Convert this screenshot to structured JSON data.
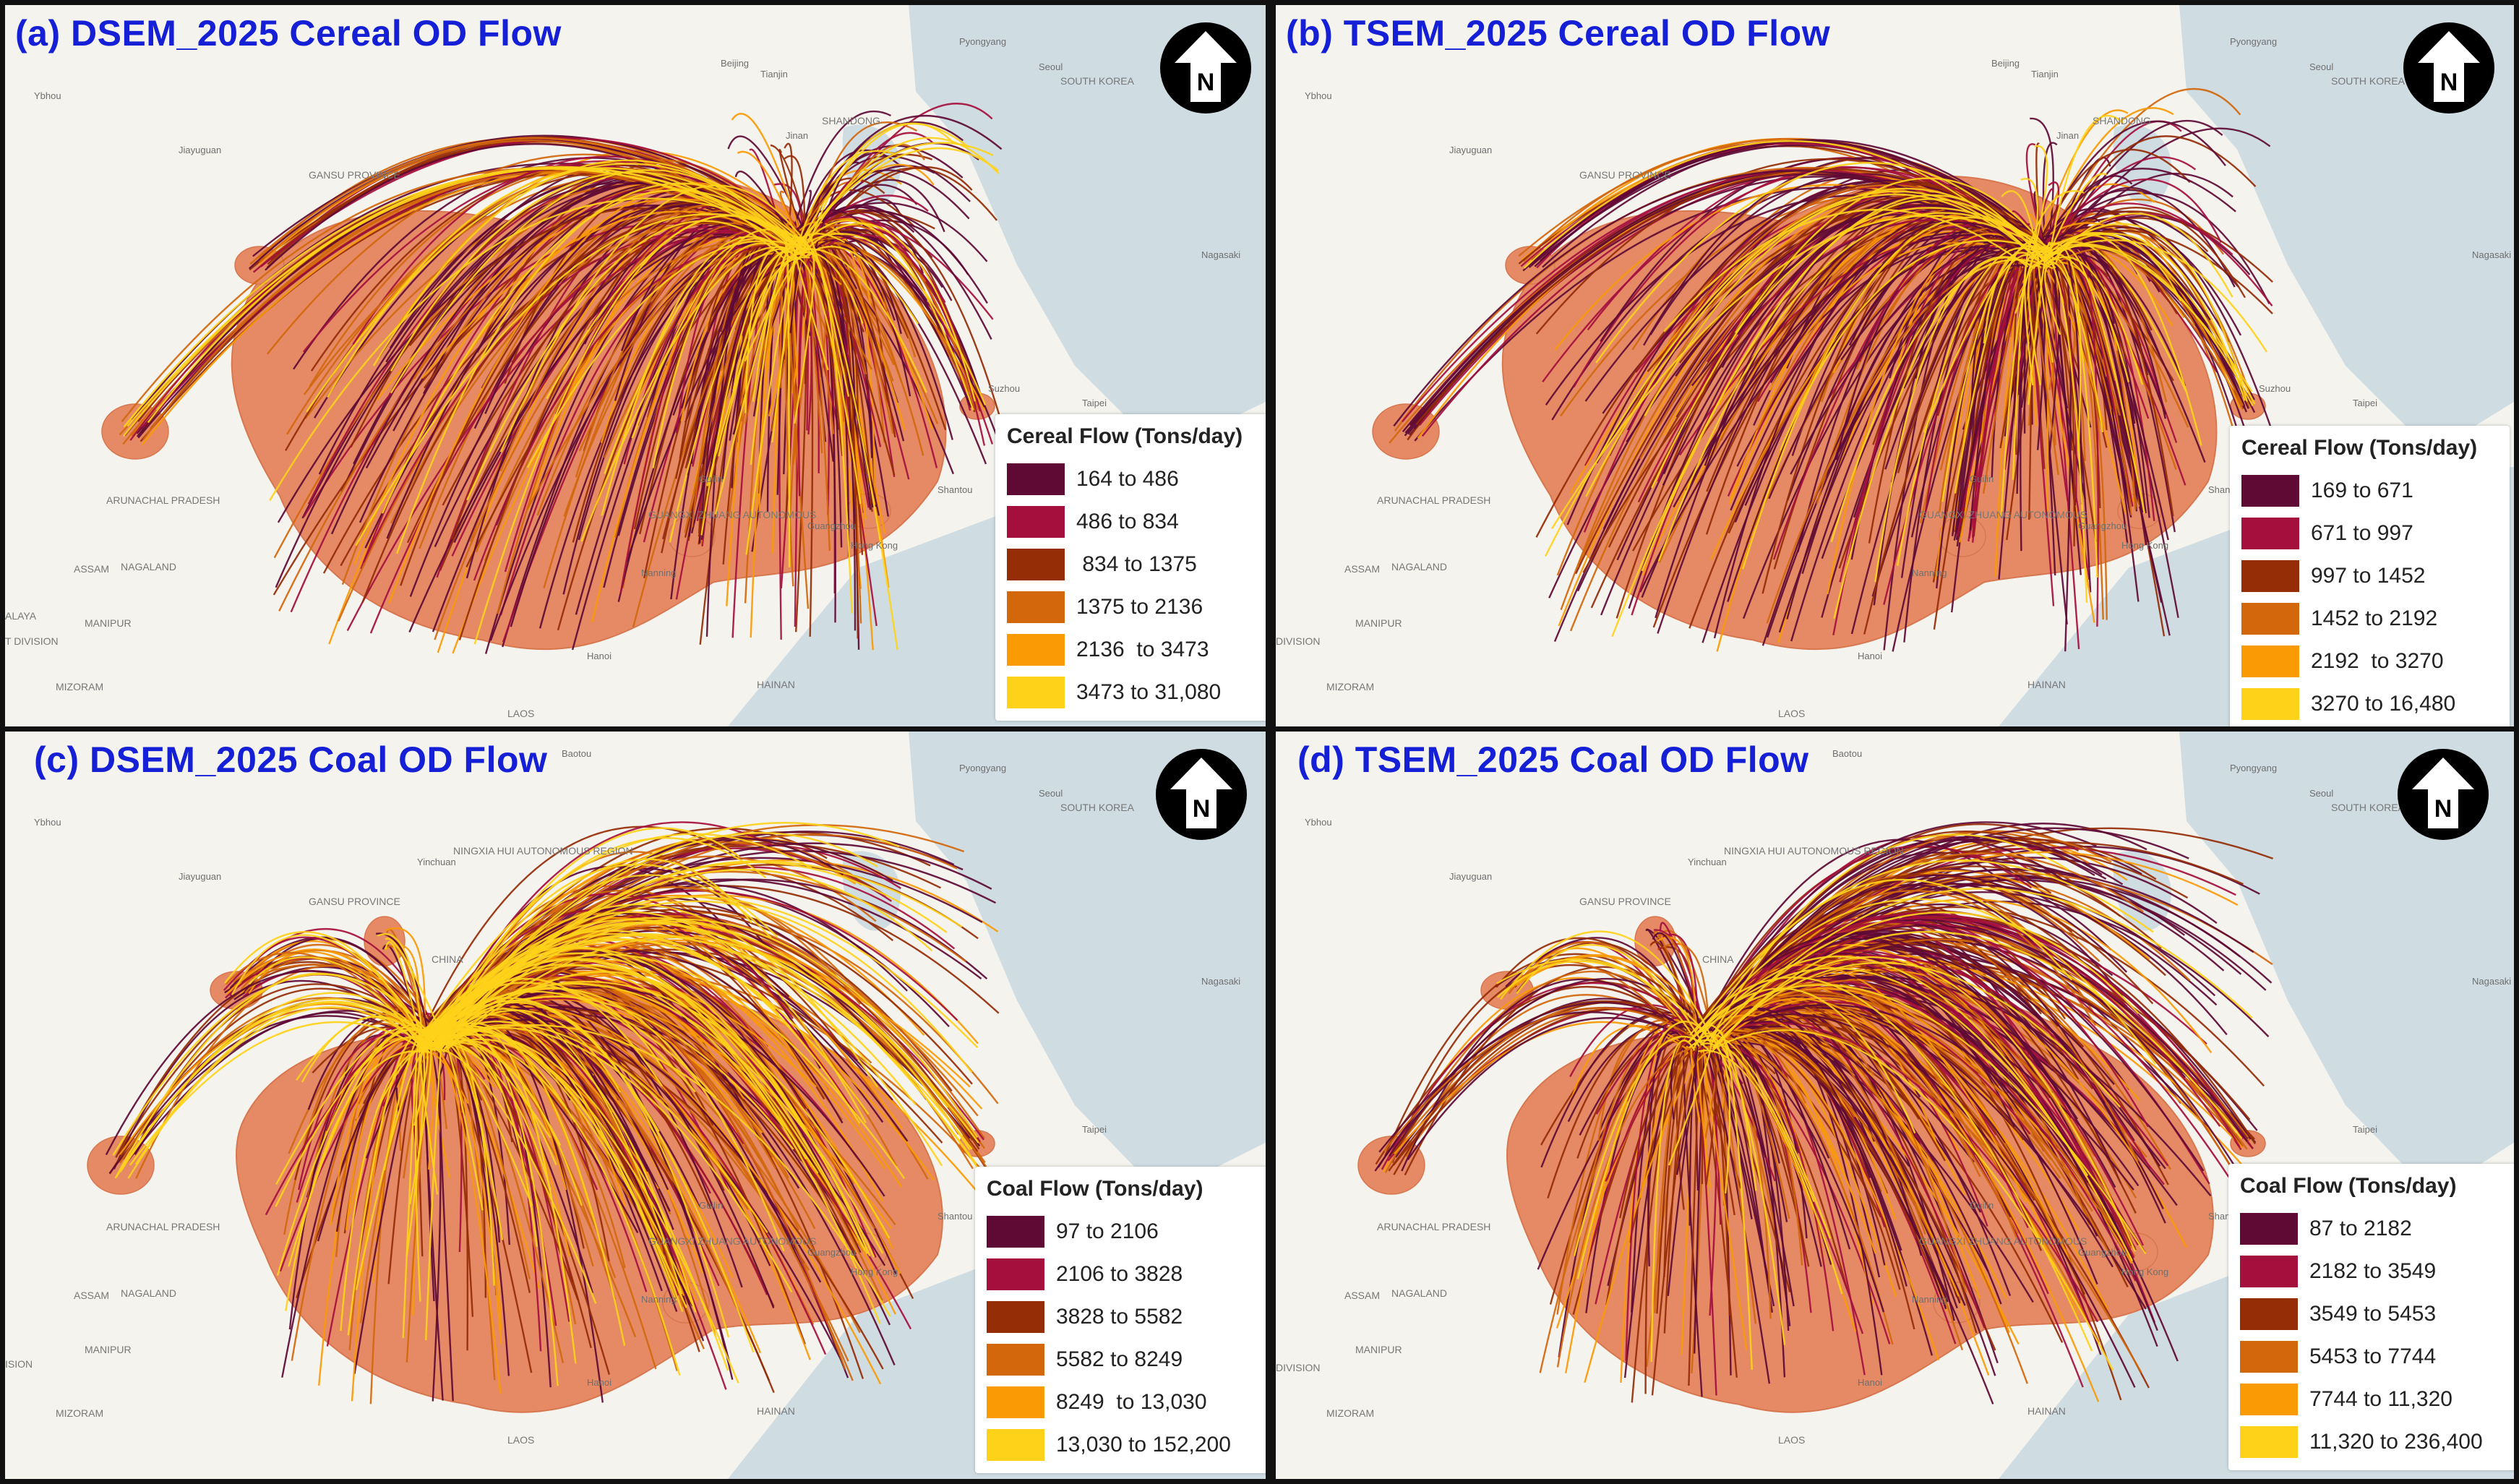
{
  "panels": [
    {
      "title": "(a) DSEM_2025 Cereal OD Flow",
      "north_label": "N",
      "legend": {
        "title": "Cereal Flow (Tons/day)",
        "items": [
          {
            "label": "164 to 486",
            "color": "#5e0a35"
          },
          {
            "label": "486 to 834",
            "color": "#a50f3e"
          },
          {
            "label": " 834 to 1375",
            "color": "#952d06"
          },
          {
            "label": "1375 to 2136",
            "color": "#d2670c"
          },
          {
            "label": "2136  to 3473",
            "color": "#fa9a05"
          },
          {
            "label": "3473 to 31,080",
            "color": "#ffd21a"
          }
        ]
      },
      "map_labels": [
        "Ybhou",
        "Jiayuguan",
        "GANSU PROVINCE",
        "Beijing",
        "Tianjin",
        "Jinan",
        "SHANDONG",
        "Pyongyang",
        "Seoul",
        "SOUTH KOREA",
        "Nagasaki",
        "Suzhou",
        "Taipei",
        "Guilin",
        "Shantou",
        "GUANGXI ZHUANG AUTONOMOUS",
        "Guangzhou",
        "Hong Kong",
        "Nanning",
        "Hanoi",
        "HAINAN",
        "LAOS",
        "ARUNACHAL PRADESH",
        "ASSAM",
        "NAGALAND",
        "MANIPUR",
        "MIZORAM",
        "ALAYA",
        "T DIVISION"
      ]
    },
    {
      "title": "(b) TSEM_2025 Cereal OD Flow",
      "north_label": "N",
      "legend": {
        "title": "Cereal Flow (Tons/day)",
        "items": [
          {
            "label": "169 to 671",
            "color": "#5e0a35"
          },
          {
            "label": "671 to 997",
            "color": "#a50f3e"
          },
          {
            "label": "997 to 1452",
            "color": "#952d06"
          },
          {
            "label": "1452 to 2192",
            "color": "#d2670c"
          },
          {
            "label": "2192  to 3270",
            "color": "#fa9a05"
          },
          {
            "label": "3270 to 16,480",
            "color": "#ffd21a"
          }
        ]
      },
      "map_labels": [
        "Ybhou",
        "Jiayuguan",
        "GANSU PROVINCE",
        "Beijing",
        "Tianjin",
        "Jinan",
        "SHANDONG",
        "Pyongyang",
        "Seoul",
        "SOUTH KOREA",
        "Nagasaki",
        "Suzhou",
        "Taipei",
        "Guilin",
        "Shantou",
        "GUANGXI ZHUANG AUTONOMOUS",
        "Guangzhou",
        "Hong Kong",
        "Nanning",
        "Hanoi",
        "HAINAN",
        "LAOS",
        "ARUNACHAL PRADESH",
        "ASSAM",
        "NAGALAND",
        "MANIPUR",
        "MIZORAM",
        "DIVISION"
      ]
    },
    {
      "title": "(c) DSEM_2025 Coal OD Flow",
      "north_label": "N",
      "legend": {
        "title": "Coal Flow (Tons/day)",
        "items": [
          {
            "label": "97 to 2106",
            "color": "#5e0a35"
          },
          {
            "label": "2106 to 3828",
            "color": "#a50f3e"
          },
          {
            "label": "3828 to 5582",
            "color": "#952d06"
          },
          {
            "label": "5582 to 8249",
            "color": "#d2670c"
          },
          {
            "label": "8249  to 13,030",
            "color": "#fa9a05"
          },
          {
            "label": "13,030 to 152,200",
            "color": "#ffd21a"
          }
        ]
      },
      "map_labels": [
        "Ybhou",
        "Jiayuguan",
        "GANSU PROVINCE",
        "Yinchuan",
        "NINGXIA HUI AUTONOMOUS REGION",
        "Baotou",
        "CHINA",
        "Pyongyang",
        "Seoul",
        "SOUTH KOREA",
        "Nagasaki",
        "Taipei",
        "Guilin",
        "Shantou",
        "GUANGXI ZHUANG AUTONOMOUS",
        "Guangzhou",
        "Hong Kong",
        "Nanning",
        "Hanoi",
        "HAINAN",
        "LAOS",
        "ARUNACHAL PRADESH",
        "ASSAM",
        "NAGALAND",
        "MANIPUR",
        "MIZORAM",
        "ISION"
      ]
    },
    {
      "title": "(d) TSEM_2025 Coal OD Flow",
      "north_label": "N",
      "legend": {
        "title": "Coal Flow (Tons/day)",
        "items": [
          {
            "label": "87 to 2182",
            "color": "#5e0a35"
          },
          {
            "label": "2182 to 3549",
            "color": "#a50f3e"
          },
          {
            "label": "3549 to 5453",
            "color": "#952d06"
          },
          {
            "label": "5453 to 7744",
            "color": "#d2670c"
          },
          {
            "label": "7744 to 11,320",
            "color": "#fa9a05"
          },
          {
            "label": "11,320 to 236,400",
            "color": "#ffd21a"
          }
        ]
      },
      "map_labels": [
        "Ybhou",
        "Jiayuguan",
        "GANSU PROVINCE",
        "Yinchuan",
        "NINGXIA HUI AUTONOMOUS REGION",
        "Baotou",
        "CHINA",
        "Pyongyang",
        "Seoul",
        "SOUTH KOREA",
        "Nagasaki",
        "Taipei",
        "Guilin",
        "Shantou",
        "GUANGXI ZHUANG AUTONOMOUS",
        "Guangzhou",
        "Hong Kong",
        "Nanning",
        "Hanoi",
        "HAINAN",
        "LAOS",
        "ARUNACHAL PRADESH",
        "ASSAM",
        "NAGALAND",
        "MANIPUR",
        "MIZORAM",
        "DIVISION"
      ]
    }
  ],
  "colors": {
    "land": "#f4f3ee",
    "sea": "#cfdde3",
    "region_fill": "#e58a64",
    "title": "#1520d6"
  }
}
